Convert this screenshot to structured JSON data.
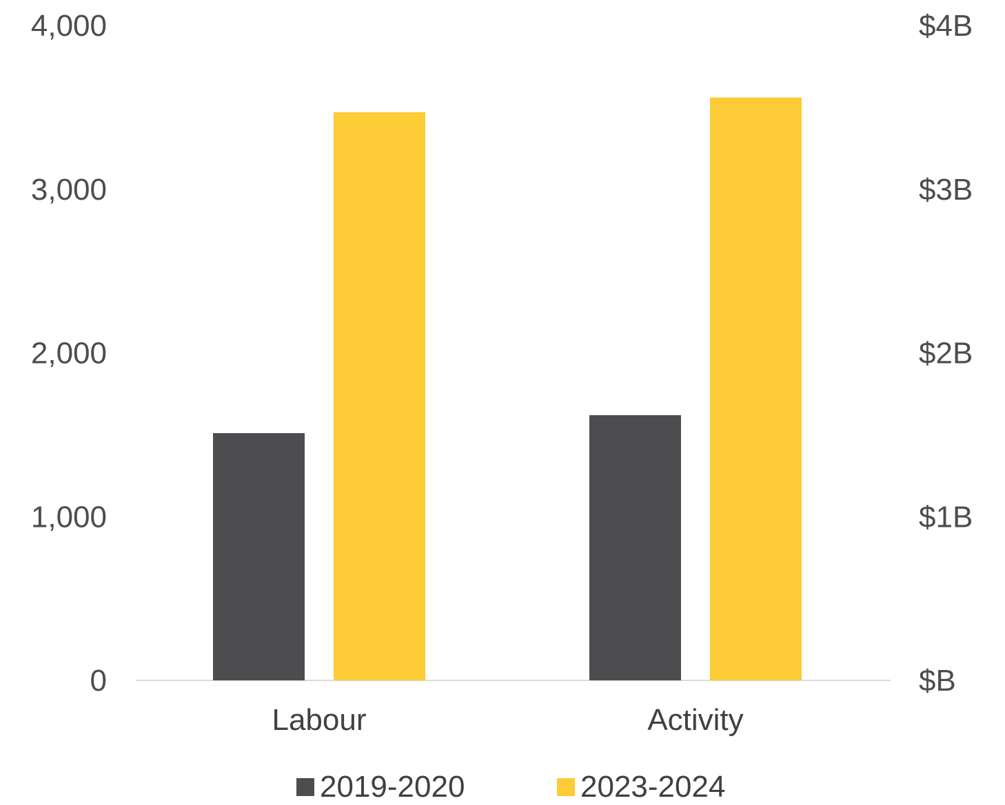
{
  "chart_data": {
    "type": "bar",
    "categories": [
      "Labour",
      "Activity"
    ],
    "series": [
      {
        "name": "2019-2020",
        "values": [
          1510,
          1620
        ],
        "color": "#4d4d4f",
        "axis": "left"
      },
      {
        "name": "2023-2024",
        "values": [
          3.47,
          3.56
        ],
        "color": "#fccb35",
        "axis": "right"
      }
    ],
    "y_left": {
      "ylim": [
        0,
        4000
      ],
      "ticks": [
        "0",
        "1,000",
        "2,000",
        "3,000",
        "4,000"
      ]
    },
    "y_right": {
      "ylim": [
        0,
        4
      ],
      "ticks": [
        "$B",
        "$1B",
        "$2B",
        "$3B",
        "$4B"
      ]
    },
    "grid": false,
    "legend_position": "bottom"
  }
}
